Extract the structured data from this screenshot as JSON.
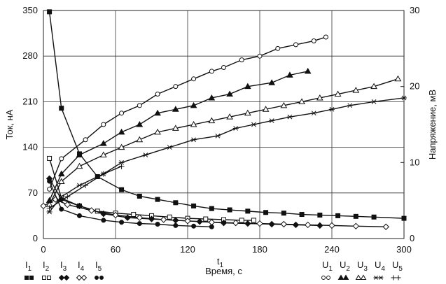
{
  "chart_data": {
    "type": "line",
    "xlabel": "Время, с",
    "x_marker_label": "t1",
    "ylabel_left": "Ток, нА",
    "ylabel_right": "Напряжение, мВ",
    "xlim": [
      0,
      300
    ],
    "ylim_left": [
      0,
      350
    ],
    "ylim_right": [
      0,
      30
    ],
    "x_ticks": [
      0,
      60,
      120,
      180,
      240,
      300
    ],
    "y_ticks_left": [
      0,
      70,
      140,
      210,
      280,
      350
    ],
    "y_ticks_right": [
      0,
      10,
      20,
      30
    ],
    "grid": true,
    "current_series": [
      {
        "name": "I1",
        "marker": "square-filled",
        "axis": "left",
        "x": [
          5,
          15,
          30,
          45,
          65,
          80,
          95,
          110,
          125,
          140,
          155,
          170,
          185,
          200,
          215,
          230,
          245,
          260,
          275,
          300
        ],
        "y": [
          348,
          200,
          130,
          95,
          75,
          65,
          60,
          55,
          50,
          46,
          44,
          42,
          40,
          39,
          37,
          36,
          35,
          34,
          33,
          31
        ]
      },
      {
        "name": "I2",
        "marker": "square-open",
        "axis": "left",
        "x": [
          5,
          15,
          30,
          45,
          60,
          75,
          90,
          105,
          120,
          135,
          150,
          165,
          175
        ],
        "y": [
          123,
          62,
          50,
          42,
          39,
          37,
          35,
          33,
          31,
          30,
          29,
          28,
          28
        ]
      },
      {
        "name": "I3",
        "marker": "diamond-filled",
        "axis": "left",
        "x": [
          5,
          15,
          30,
          50,
          70,
          90,
          110,
          130,
          150,
          170,
          190,
          210,
          230
        ],
        "y": [
          92,
          60,
          50,
          38,
          32,
          30,
          28,
          26,
          24,
          23,
          22,
          21,
          20
        ]
      },
      {
        "name": "I4",
        "marker": "diamond-open",
        "axis": "left",
        "x": [
          0,
          10,
          20,
          40,
          60,
          80,
          100,
          120,
          140,
          160,
          180,
          200,
          220,
          240,
          260,
          285
        ],
        "y": [
          50,
          60,
          52,
          43,
          36,
          32,
          29,
          27,
          25,
          24,
          23,
          22,
          21,
          20,
          19,
          18
        ]
      },
      {
        "name": "I5",
        "marker": "circle-filled",
        "axis": "left",
        "x": [
          5,
          15,
          30,
          50,
          65,
          80,
          95,
          110,
          125,
          140
        ],
        "y": [
          88,
          45,
          35,
          28,
          25,
          23,
          22,
          20,
          19,
          18
        ]
      }
    ],
    "voltage_series": [
      {
        "name": "U1",
        "marker": "circle-open",
        "axis": "right",
        "x": [
          5,
          15,
          35,
          50,
          65,
          80,
          95,
          110,
          125,
          140,
          150,
          165,
          180,
          195,
          210,
          225,
          235
        ],
        "y": [
          6.5,
          10.5,
          13,
          15,
          16.5,
          17.5,
          19,
          20,
          21,
          22,
          22.5,
          23.5,
          24,
          25,
          25.5,
          26,
          26.5
        ]
      },
      {
        "name": "U2",
        "marker": "triangle-filled",
        "axis": "right",
        "x": [
          5,
          15,
          30,
          50,
          65,
          80,
          95,
          110,
          125,
          140,
          155,
          170,
          190,
          205,
          220
        ],
        "y": [
          5,
          8.5,
          11,
          12.5,
          14,
          15,
          16.5,
          17,
          17.5,
          18.5,
          19,
          20,
          20.5,
          21.5,
          22
        ]
      },
      {
        "name": "U3",
        "marker": "triangle-open",
        "axis": "right",
        "x": [
          5,
          15,
          30,
          50,
          65,
          80,
          95,
          110,
          125,
          140,
          155,
          170,
          185,
          200,
          215,
          230,
          245,
          260,
          275,
          295
        ],
        "y": [
          4.5,
          7.5,
          9.5,
          11,
          12,
          13,
          14,
          14.5,
          15,
          15.5,
          16,
          16.5,
          17,
          17.5,
          18,
          18.5,
          19,
          19.5,
          20,
          21
        ]
      },
      {
        "name": "U4",
        "marker": "asterisk",
        "axis": "right",
        "x": [
          5,
          15,
          30,
          50,
          65,
          85,
          105,
          125,
          145,
          160,
          175,
          190,
          205,
          225,
          240,
          255,
          275,
          300
        ],
        "y": [
          3.5,
          5.5,
          7,
          8.5,
          10,
          11,
          12,
          13,
          13.5,
          14.5,
          15,
          15.5,
          16,
          16.5,
          17,
          17.5,
          18,
          18.5
        ]
      },
      {
        "name": "U5",
        "marker": "plus",
        "axis": "right",
        "x": [
          5,
          20,
          35,
          50,
          65
        ],
        "y": [
          4,
          5.5,
          7,
          8.5,
          9.5
        ]
      }
    ]
  },
  "legend": {
    "current": [
      {
        "name": "I",
        "sub": "1",
        "marker": "square-filled"
      },
      {
        "name": "I",
        "sub": "2",
        "marker": "square-open"
      },
      {
        "name": "I",
        "sub": "3",
        "marker": "diamond-filled"
      },
      {
        "name": "I",
        "sub": "4",
        "marker": "diamond-open"
      },
      {
        "name": "I",
        "sub": "5",
        "marker": "circle-filled"
      }
    ],
    "voltage": [
      {
        "name": "U",
        "sub": "1",
        "marker": "circle-open"
      },
      {
        "name": "U",
        "sub": "2",
        "marker": "triangle-filled"
      },
      {
        "name": "U",
        "sub": "3",
        "marker": "triangle-open"
      },
      {
        "name": "U",
        "sub": "4",
        "marker": "asterisk"
      },
      {
        "name": "U",
        "sub": "5",
        "marker": "plus"
      }
    ]
  }
}
